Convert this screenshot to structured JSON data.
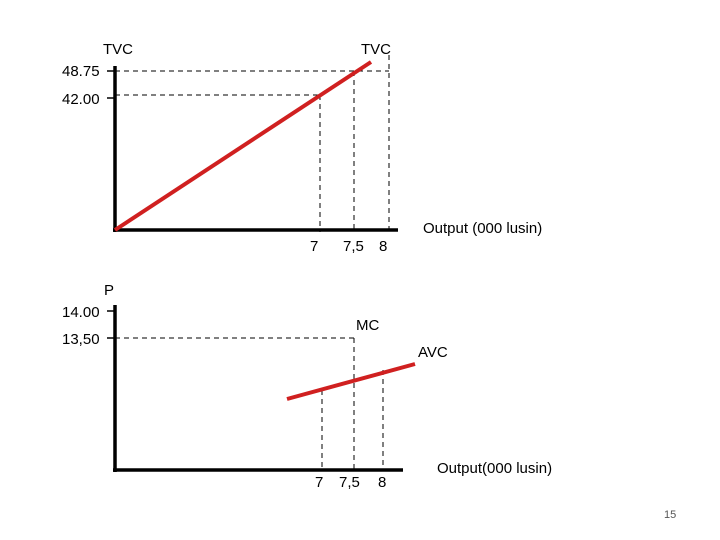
{
  "slide": {
    "page_number": "15"
  },
  "chart_data": [
    {
      "type": "line",
      "ylabel": "TVC",
      "xlabel": "Output (000 lusin)",
      "y_ticks": [
        "48.75",
        "42.00"
      ],
      "x_ticks": [
        "7",
        "7,5",
        "8"
      ],
      "series": [
        {
          "name": "TVC",
          "x": [
            0,
            8.2
          ],
          "y": [
            0,
            50.5
          ],
          "color": "#d02020"
        }
      ],
      "reference_points": [
        {
          "x": 7,
          "y": 42.0
        },
        {
          "x": 7.5,
          "y": 48.75
        },
        {
          "x": 8,
          "y": null
        }
      ],
      "grid": false
    },
    {
      "type": "line",
      "ylabel": "P",
      "xlabel": "Output(000 lusin)",
      "y_ticks": [
        "14.00",
        "13,50"
      ],
      "x_ticks": [
        "7",
        "7,5",
        "8"
      ],
      "series": [
        {
          "name": "MC",
          "x": [],
          "y": []
        },
        {
          "name": "AVC",
          "x": [
            5.5,
            8.8
          ],
          "y": [
            4.0,
            7.0
          ],
          "color": "#d02020"
        }
      ],
      "reference_points": [
        {
          "x": 7,
          "y": null
        },
        {
          "x": 7.5,
          "y": 13.5
        },
        {
          "x": 8,
          "y": null
        }
      ],
      "grid": false
    }
  ]
}
